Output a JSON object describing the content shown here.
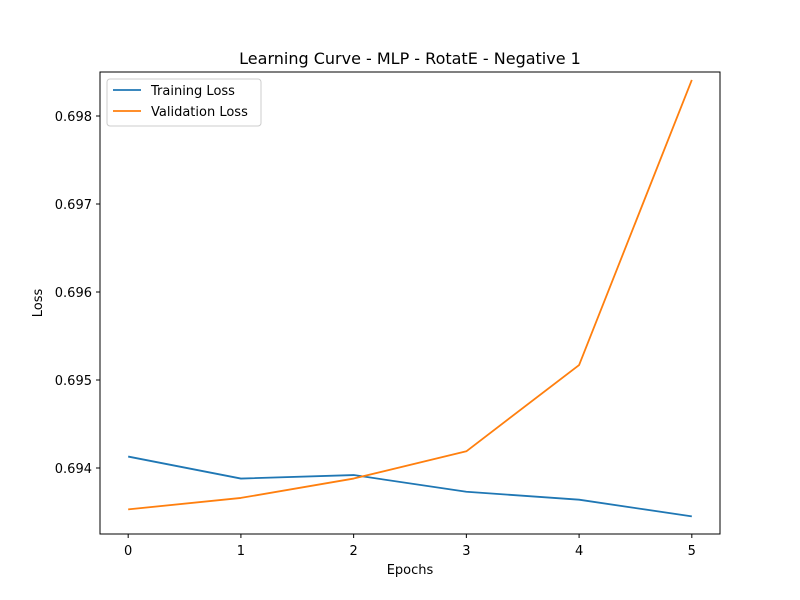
{
  "chart_data": {
    "type": "line",
    "title": "Learning Curve - MLP - RotatE - Negative 1",
    "xlabel": "Epochs",
    "ylabel": "Loss",
    "x": [
      0,
      1,
      2,
      3,
      4,
      5
    ],
    "xticks": [
      0,
      1,
      2,
      3,
      4,
      5
    ],
    "yticks": [
      0.694,
      0.695,
      0.696,
      0.697,
      0.698
    ],
    "xlim": [
      -0.25,
      5.25
    ],
    "ylim": [
      0.69325,
      0.6985
    ],
    "grid": false,
    "legend": "upper-left",
    "series": [
      {
        "name": "Training Loss",
        "color": "#1f77b4",
        "values": [
          0.69413,
          0.69388,
          0.69392,
          0.69373,
          0.69364,
          0.69345
        ]
      },
      {
        "name": "Validation Loss",
        "color": "#ff7f0e",
        "values": [
          0.69353,
          0.69366,
          0.69388,
          0.69419,
          0.69517,
          0.69841
        ]
      }
    ]
  }
}
